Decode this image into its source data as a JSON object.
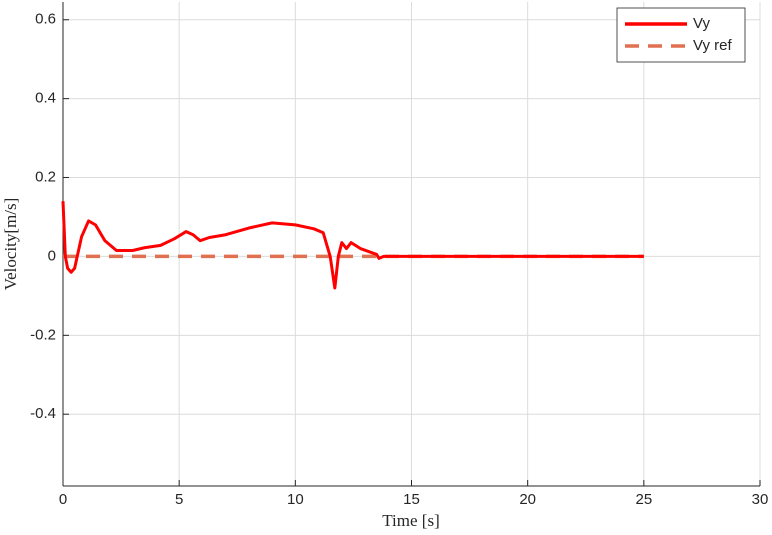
{
  "chart_data": {
    "type": "line",
    "xlabel": "Time [s]",
    "ylabel": "Velocity[m/s]",
    "xlim": [
      0,
      30
    ],
    "xticks": [
      0,
      5,
      10,
      15,
      20,
      25,
      30
    ],
    "ylim": [
      -0.582,
      0.645
    ],
    "yticks": [
      -0.4,
      -0.2,
      0,
      0.2,
      0.4,
      0.6
    ],
    "grid": true,
    "legend": "northeast",
    "series": [
      {
        "name": "Vy",
        "color": "#ff0000",
        "dash": false,
        "x": [
          0,
          0.1,
          0.2,
          0.35,
          0.5,
          0.8,
          1.1,
          1.4,
          1.8,
          2.3,
          3,
          3.5,
          4.2,
          4.8,
          5.3,
          5.6,
          5.9,
          6.3,
          7,
          8,
          9,
          10,
          10.8,
          11.2,
          11.5,
          11.7,
          11.85,
          12,
          12.2,
          12.4,
          12.8,
          13.5,
          13.6,
          13.8,
          25
        ],
        "values": [
          0.14,
          0.0,
          -0.03,
          -0.04,
          -0.03,
          0.05,
          0.09,
          0.08,
          0.04,
          0.015,
          0.015,
          0.022,
          0.028,
          0.045,
          0.063,
          0.055,
          0.04,
          0.048,
          0.055,
          0.072,
          0.085,
          0.08,
          0.07,
          0.06,
          0.0,
          -0.08,
          0.0,
          0.035,
          0.02,
          0.035,
          0.02,
          0.005,
          -0.005,
          0,
          0
        ]
      },
      {
        "name": "Vy ref",
        "color": "#e07050",
        "dash": true,
        "x": [
          0,
          25
        ],
        "values": [
          0,
          0
        ]
      }
    ]
  }
}
